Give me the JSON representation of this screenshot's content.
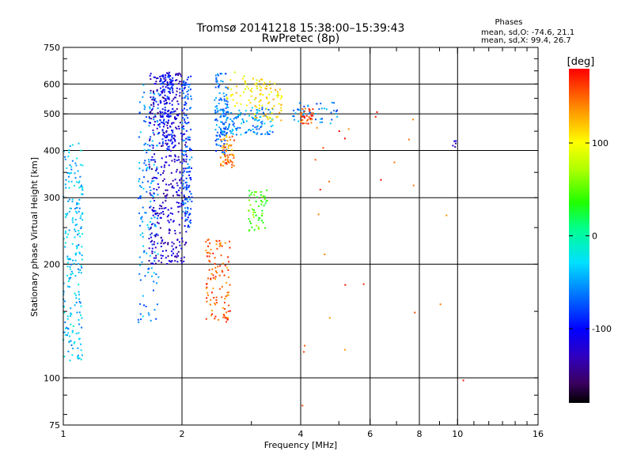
{
  "chart_data": {
    "type": "scatter",
    "title": "Tromsø 20141218 15:38:00–15:39:43",
    "subtitle": "RwPretec (8p)",
    "stats_title": "Phases",
    "stats_line1": "mean, sd,O: -74.6, 21.1",
    "stats_line2": "mean, sd,X:  99.4, 26.7",
    "xlabel": "Frequency [MHz]",
    "ylabel": "Stationary phase Virtual Height [km]",
    "xscale": "log",
    "yscale": "log",
    "xlim": [
      1,
      16
    ],
    "ylim": [
      75,
      750
    ],
    "x_ticks": [
      1,
      2,
      4,
      6,
      8,
      10,
      16
    ],
    "x_tick_labels": [
      "1",
      "2",
      "4",
      "6",
      "8",
      "10",
      "16"
    ],
    "x_minor_ticks": [
      3,
      5,
      7,
      9
    ],
    "y_ticks": [
      75,
      100,
      200,
      300,
      400,
      500,
      600,
      750
    ],
    "y_tick_labels": [
      "75",
      "100",
      "200",
      "300",
      "400",
      "500",
      "600",
      "750"
    ],
    "y_minor_ticks": [
      150,
      250,
      350
    ],
    "grid": true,
    "colorbar": {
      "label": "[deg]",
      "range": [
        -180,
        180
      ],
      "ticks": [
        100,
        0,
        -100
      ],
      "tick_labels": [
        "100",
        "0",
        "-100"
      ]
    },
    "clusters": [
      {
        "f": [
          1.0,
          1.12
        ],
        "h": [
          110,
          420
        ],
        "phase": -40,
        "n": 220
      },
      {
        "f": [
          1.55,
          1.75
        ],
        "h": [
          140,
          600
        ],
        "phase": -55,
        "n": 160
      },
      {
        "f": [
          1.65,
          2.05
        ],
        "h": [
          200,
          650
        ],
        "phase": -125,
        "n": 420
      },
      {
        "f": [
          1.75,
          1.9
        ],
        "h": [
          400,
          640
        ],
        "phase": -95,
        "n": 140
      },
      {
        "f": [
          2.0,
          2.12
        ],
        "h": [
          250,
          630
        ],
        "phase": -75,
        "n": 150
      },
      {
        "f": [
          2.42,
          2.62
        ],
        "h": [
          390,
          640
        ],
        "phase": -65,
        "n": 120
      },
      {
        "f": [
          2.5,
          2.72
        ],
        "h": [
          360,
          440
        ],
        "phase": 140,
        "n": 60
      },
      {
        "f": [
          2.5,
          3.4
        ],
        "h": [
          440,
          520
        ],
        "phase": -55,
        "n": 130
      },
      {
        "f": [
          2.95,
          3.3
        ],
        "h": [
          245,
          315
        ],
        "phase": 45,
        "n": 55
      },
      {
        "f": [
          3.05,
          3.6
        ],
        "h": [
          480,
          620
        ],
        "phase": 110,
        "n": 70
      },
      {
        "f": [
          2.3,
          2.65
        ],
        "h": [
          140,
          235
        ],
        "phase": 150,
        "n": 110
      },
      {
        "f": [
          2.6,
          3.2
        ],
        "h": [
          520,
          650
        ],
        "phase": 100,
        "n": 40
      },
      {
        "f": [
          4.0,
          4.3
        ],
        "h": [
          470,
          520
        ],
        "phase": 160,
        "n": 40
      },
      {
        "f": [
          3.8,
          5.0
        ],
        "h": [
          470,
          540
        ],
        "phase": -60,
        "n": 40
      },
      {
        "f": [
          4.3,
          7.8
        ],
        "h": [
          300,
          540
        ],
        "phase": 160,
        "n": 14
      },
      {
        "f": [
          3.9,
          10.5
        ],
        "h": [
          84,
          330
        ],
        "phase": 150,
        "n": 14
      },
      {
        "f": [
          9.6,
          9.9
        ],
        "h": [
          405,
          430
        ],
        "phase": -120,
        "n": 5
      }
    ]
  }
}
